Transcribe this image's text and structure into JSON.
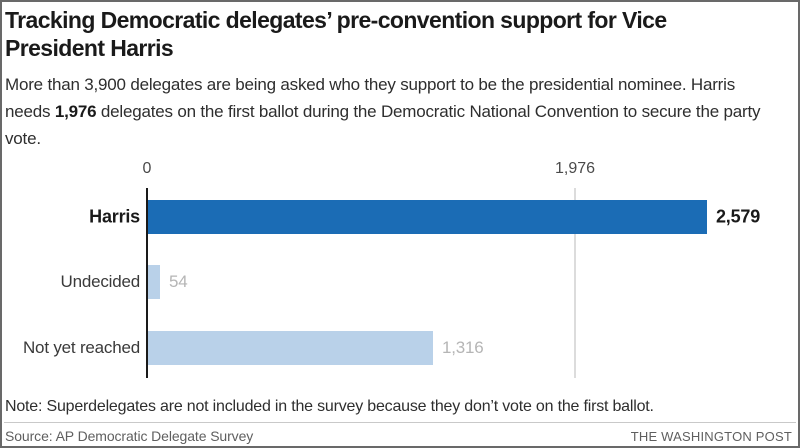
{
  "header": {
    "title_line1": "Tracking Democratic delegates’ pre-convention support for Vice",
    "title_line2": "President Harris",
    "subtitle_before": "More than 3,900 delegates are being asked who they support to be the presidential nominee. Harris needs ",
    "subtitle_bold": "1,976",
    "subtitle_after": " delegates on the first ballot during the Democratic National Convention to secure the party vote."
  },
  "chart_data": {
    "type": "bar",
    "orientation": "horizontal",
    "title": "",
    "xlabel": "",
    "ylabel": "",
    "legend": "none",
    "categories": [
      "Harris",
      "Undecided",
      "Not yet reached"
    ],
    "values": [
      2579,
      54,
      1316
    ],
    "value_labels": [
      "2,579",
      "54",
      "1,316"
    ],
    "category_emphasis": [
      true,
      false,
      false
    ],
    "bar_colors": [
      "#1b6cb5",
      "#b9d1e9",
      "#b9d1e9"
    ],
    "value_label_colors": [
      "#1a1a1a",
      "#b5b5b5",
      "#b5b5b5"
    ],
    "xlim": [
      0,
      3000
    ],
    "ticks": [
      {
        "value": 0,
        "label": "0"
      },
      {
        "value": 1976,
        "label": "1,976"
      }
    ],
    "grid": "vertical line at each tick; 0-tick drawn as solid black axis",
    "axis_color": "#1a1a1a",
    "gridline_color": "#dcdcdc"
  },
  "footer": {
    "note": "Note: Superdelegates are not included in the survey because they don’t vote on the first ballot.",
    "source": "Source: AP Democratic Delegate Survey",
    "credit": "THE WASHINGTON POST"
  }
}
